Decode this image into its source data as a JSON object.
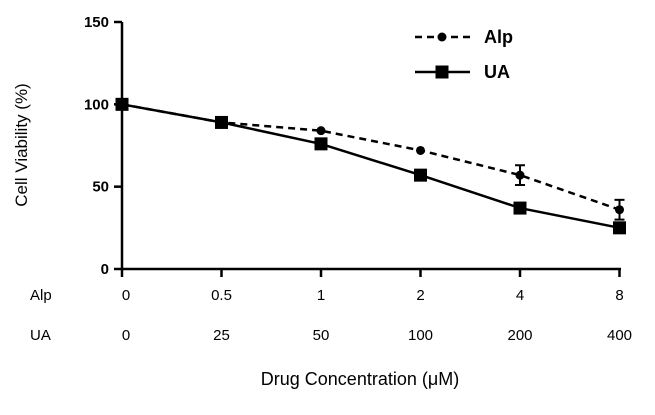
{
  "chart_data": {
    "type": "line",
    "categories_rows": [
      {
        "label": "Alp",
        "values": [
          "0",
          "0.5",
          "1",
          "2",
          "4",
          "8"
        ]
      },
      {
        "label": "UA",
        "values": [
          "0",
          "25",
          "50",
          "100",
          "200",
          "400"
        ]
      }
    ],
    "yticks": [
      "0",
      "50",
      "100",
      "150"
    ],
    "ylim": [
      0,
      150
    ],
    "ylabel": "Cell Viability (%)",
    "xlabel": "Drug Concentration (μM)",
    "legend_position": "top-right",
    "series": [
      {
        "name": "Alp",
        "style": "dashed",
        "marker": "circle",
        "values": [
          100,
          89,
          84,
          72,
          57,
          36
        ],
        "error": [
          0,
          0,
          0,
          0,
          6,
          6
        ]
      },
      {
        "name": "UA",
        "style": "solid",
        "marker": "square",
        "values": [
          100,
          89,
          76,
          57,
          37,
          25
        ],
        "error": [
          0,
          0,
          0,
          0,
          0,
          3
        ]
      }
    ]
  }
}
